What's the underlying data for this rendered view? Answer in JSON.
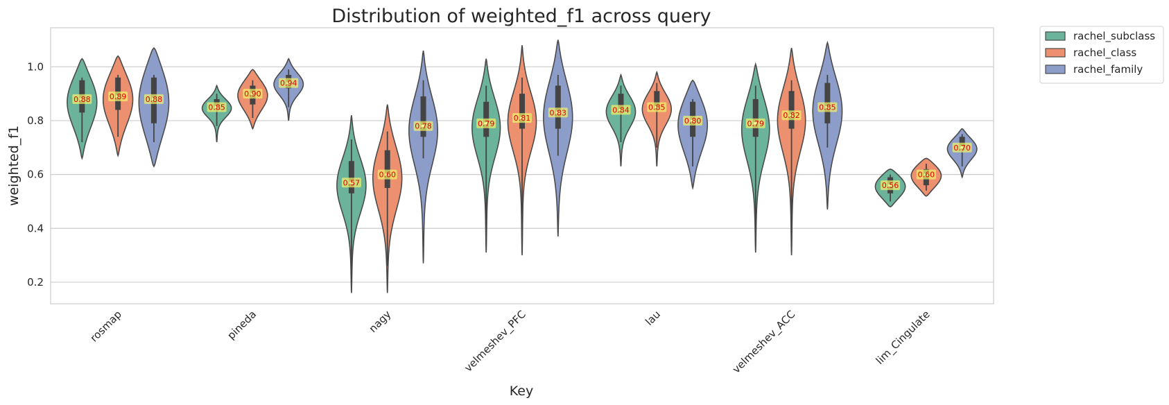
{
  "chart_data": {
    "type": "violin",
    "title": "Distribution of weighted_f1 across query",
    "xlabel": "Key",
    "ylabel": "weighted_f1",
    "ylim": [
      0.12,
      1.145
    ],
    "yticks": [
      0.2,
      0.4,
      0.6,
      0.8,
      1.0
    ],
    "ytick_labels": [
      "0.2",
      "0.4",
      "0.6",
      "0.8",
      "1.0"
    ],
    "grid": "horizontal",
    "legend_position": "outside-top-right",
    "categories": [
      "rosmap",
      "pineda",
      "nagy",
      "velmeshev_PFC",
      "lau",
      "velmeshev_ACC",
      "lim_Cingulate"
    ],
    "series": [
      {
        "name": "rachel_subclass",
        "color": "#6bb39a",
        "violins": [
          {
            "min": 0.66,
            "max": 1.03,
            "q1": 0.83,
            "q3": 0.95,
            "whisker_low": 0.72,
            "whisker_high": 0.96,
            "median": 0.88,
            "median_label": "0.88"
          },
          {
            "min": 0.72,
            "max": 0.93,
            "q1": 0.84,
            "q3": 0.88,
            "whisker_low": 0.78,
            "whisker_high": 0.9,
            "median": 0.85,
            "median_label": "0.85"
          },
          {
            "min": 0.16,
            "max": 0.82,
            "q1": 0.53,
            "q3": 0.65,
            "whisker_low": 0.2,
            "whisker_high": 0.73,
            "median": 0.57,
            "median_label": "0.57"
          },
          {
            "min": 0.31,
            "max": 1.03,
            "q1": 0.74,
            "q3": 0.87,
            "whisker_low": 0.4,
            "whisker_high": 0.93,
            "median": 0.79,
            "median_label": "0.79"
          },
          {
            "min": 0.63,
            "max": 0.97,
            "q1": 0.83,
            "q3": 0.9,
            "whisker_low": 0.72,
            "whisker_high": 0.93,
            "median": 0.84,
            "median_label": "0.84"
          },
          {
            "min": 0.31,
            "max": 1.01,
            "q1": 0.74,
            "q3": 0.88,
            "whisker_low": 0.4,
            "whisker_high": 0.93,
            "median": 0.79,
            "median_label": "0.79"
          },
          {
            "min": 0.48,
            "max": 0.62,
            "q1": 0.53,
            "q3": 0.59,
            "whisker_low": 0.5,
            "whisker_high": 0.6,
            "median": 0.56,
            "median_label": "0.56"
          }
        ]
      },
      {
        "name": "rachel_class",
        "color": "#ec9070",
        "violins": [
          {
            "min": 0.67,
            "max": 1.04,
            "q1": 0.84,
            "q3": 0.96,
            "whisker_low": 0.74,
            "whisker_high": 0.97,
            "median": 0.89,
            "median_label": "0.89"
          },
          {
            "min": 0.77,
            "max": 0.99,
            "q1": 0.86,
            "q3": 0.93,
            "whisker_low": 0.81,
            "whisker_high": 0.95,
            "median": 0.9,
            "median_label": "0.90"
          },
          {
            "min": 0.16,
            "max": 0.86,
            "q1": 0.55,
            "q3": 0.69,
            "whisker_low": 0.26,
            "whisker_high": 0.76,
            "median": 0.6,
            "median_label": "0.60"
          },
          {
            "min": 0.3,
            "max": 1.08,
            "q1": 0.77,
            "q3": 0.9,
            "whisker_low": 0.42,
            "whisker_high": 0.96,
            "median": 0.81,
            "median_label": "0.81"
          },
          {
            "min": 0.63,
            "max": 0.98,
            "q1": 0.84,
            "q3": 0.91,
            "whisker_low": 0.7,
            "whisker_high": 0.94,
            "median": 0.85,
            "median_label": "0.85"
          },
          {
            "min": 0.3,
            "max": 1.07,
            "q1": 0.77,
            "q3": 0.91,
            "whisker_low": 0.42,
            "whisker_high": 0.95,
            "median": 0.82,
            "median_label": "0.82"
          },
          {
            "min": 0.52,
            "max": 0.66,
            "q1": 0.56,
            "q3": 0.62,
            "whisker_low": 0.54,
            "whisker_high": 0.64,
            "median": 0.6,
            "median_label": "0.60"
          }
        ]
      },
      {
        "name": "rachel_family",
        "color": "#8c9dc9",
        "violins": [
          {
            "min": 0.63,
            "max": 1.07,
            "q1": 0.79,
            "q3": 0.96,
            "whisker_low": 0.72,
            "whisker_high": 0.97,
            "median": 0.88,
            "median_label": "0.88"
          },
          {
            "min": 0.8,
            "max": 1.03,
            "q1": 0.92,
            "q3": 0.97,
            "whisker_low": 0.85,
            "whisker_high": 0.99,
            "median": 0.94,
            "median_label": "0.94"
          },
          {
            "min": 0.27,
            "max": 1.06,
            "q1": 0.74,
            "q3": 0.89,
            "whisker_low": 0.66,
            "whisker_high": 0.95,
            "median": 0.78,
            "median_label": "0.78"
          },
          {
            "min": 0.37,
            "max": 1.1,
            "q1": 0.77,
            "q3": 0.93,
            "whisker_low": 0.67,
            "whisker_high": 0.97,
            "median": 0.83,
            "median_label": "0.83"
          },
          {
            "min": 0.55,
            "max": 0.95,
            "q1": 0.74,
            "q3": 0.87,
            "whisker_low": 0.63,
            "whisker_high": 0.88,
            "median": 0.8,
            "median_label": "0.80"
          },
          {
            "min": 0.47,
            "max": 1.09,
            "q1": 0.79,
            "q3": 0.94,
            "whisker_low": 0.7,
            "whisker_high": 0.97,
            "median": 0.85,
            "median_label": "0.85"
          },
          {
            "min": 0.59,
            "max": 0.77,
            "q1": 0.69,
            "q3": 0.74,
            "whisker_low": 0.63,
            "whisker_high": 0.75,
            "median": 0.7,
            "median_label": "0.70"
          }
        ]
      }
    ]
  }
}
